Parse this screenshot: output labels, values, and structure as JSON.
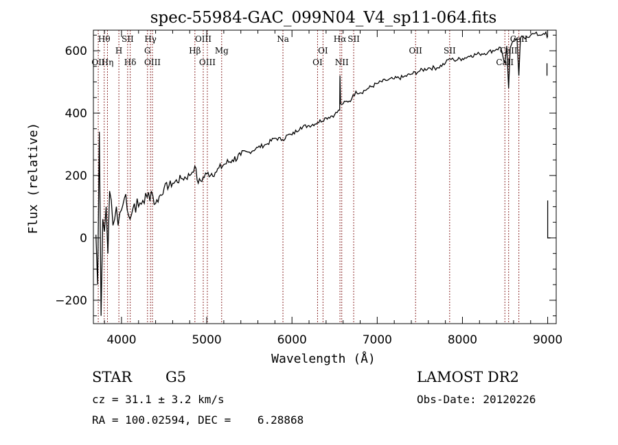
{
  "chart_data": {
    "type": "line",
    "title": "spec-55984-GAC_099N04_V4_sp11-064.fits",
    "xlabel": "Wavelength (Å)",
    "ylabel": "Flux (relative)",
    "xlim": [
      3670,
      9100
    ],
    "ylim": [
      -275,
      666
    ],
    "grid": false,
    "x_ticks": [
      4000,
      5000,
      6000,
      7000,
      8000,
      9000
    ],
    "x_tick_labels": [
      "4000",
      "5000",
      "6000",
      "7000",
      "8000",
      "9000"
    ],
    "x_minor_step": 200,
    "y_ticks": [
      -200,
      0,
      200,
      400,
      600
    ],
    "y_tick_labels": [
      "−200",
      "0",
      "200",
      "400",
      "600"
    ],
    "y_minor_step": 50,
    "line_color": "#000000",
    "marker_line_color": "#8b2a2a",
    "series": [
      {
        "name": "spectrum",
        "x": [
          3700,
          3720,
          3740,
          3760,
          3780,
          3800,
          3820,
          3840,
          3860,
          3880,
          3900,
          3920,
          3940,
          3960,
          3980,
          4000,
          4050,
          4100,
          4150,
          4200,
          4250,
          4300,
          4350,
          4400,
          4500,
          4600,
          4700,
          4800,
          4860,
          4900,
          5000,
          5100,
          5200,
          5300,
          5400,
          5500,
          5600,
          5700,
          5800,
          5890,
          5950,
          6000,
          6100,
          6200,
          6300,
          6400,
          6500,
          6560,
          6563,
          6570,
          6600,
          6700,
          6750,
          6800,
          6900,
          7000,
          7100,
          7200,
          7300,
          7400,
          7500,
          7600,
          7700,
          7800,
          7850,
          7900,
          8000,
          8100,
          8200,
          8300,
          8400,
          8450,
          8498,
          8520,
          8542,
          8560,
          8600,
          8640,
          8662,
          8680,
          8750,
          8800,
          8850,
          8900,
          8950,
          8980,
          8995
        ],
        "y": [
          10,
          -150,
          340,
          -250,
          60,
          20,
          100,
          -50,
          150,
          120,
          40,
          60,
          100,
          40,
          80,
          90,
          140,
          60,
          110,
          100,
          120,
          130,
          150,
          110,
          160,
          175,
          190,
          200,
          230,
          175,
          205,
          210,
          235,
          250,
          265,
          275,
          290,
          300,
          320,
          315,
          330,
          330,
          355,
          360,
          370,
          385,
          395,
          410,
          520,
          430,
          430,
          445,
          470,
          465,
          480,
          495,
          505,
          510,
          515,
          525,
          535,
          545,
          545,
          560,
          575,
          570,
          575,
          585,
          590,
          595,
          605,
          610,
          560,
          615,
          480,
          610,
          630,
          640,
          520,
          640,
          645,
          650,
          655,
          650,
          655,
          660,
          640
        ]
      }
    ],
    "line_markers": [
      {
        "label": "Hθ",
        "wavelength": 3797,
        "row": 1
      },
      {
        "label": "OII",
        "wavelength": 3727,
        "row": 3
      },
      {
        "label": "Hη",
        "wavelength": 3835,
        "row": 3
      },
      {
        "label": "H",
        "wavelength": 3969,
        "row": 2
      },
      {
        "label": "SII",
        "wavelength": 4072,
        "row": 1
      },
      {
        "label": "Hδ",
        "wavelength": 4102,
        "row": 3
      },
      {
        "label": "Hγ",
        "wavelength": 4340,
        "row": 1
      },
      {
        "label": "G",
        "wavelength": 4305,
        "row": 2
      },
      {
        "label": "OIII",
        "wavelength": 4363,
        "row": 3
      },
      {
        "label": "Hβ",
        "wavelength": 4861,
        "row": 2
      },
      {
        "label": "OIII",
        "wavelength": 4959,
        "row": 1
      },
      {
        "label": "OIII",
        "wavelength": 5007,
        "row": 3
      },
      {
        "label": "Mg",
        "wavelength": 5175,
        "row": 2
      },
      {
        "label": "Na",
        "wavelength": 5894,
        "row": 1
      },
      {
        "label": "OI",
        "wavelength": 6300,
        "row": 3
      },
      {
        "label": "OI",
        "wavelength": 6364,
        "row": 2
      },
      {
        "label": "Hα",
        "wavelength": 6563,
        "row": 1
      },
      {
        "label": "NII",
        "wavelength": 6584,
        "row": 3
      },
      {
        "label": "SII",
        "wavelength": 6724,
        "row": 1
      },
      {
        "label": "OII",
        "wavelength": 7450,
        "row": 2
      },
      {
        "label": "SII",
        "wavelength": 7850,
        "row": 2
      },
      {
        "label": "CaII",
        "wavelength": 8498,
        "row": 3
      },
      {
        "label": "CaII",
        "wavelength": 8542,
        "row": 2
      },
      {
        "label": "CaII",
        "wavelength": 8662,
        "row": 1
      }
    ]
  },
  "info": {
    "object_class": "STAR",
    "subclass": "G5",
    "redshift_line": "cz = 31.1 ± 3.2 km/s",
    "coords_line": "RA = 100.02594, DEC =    6.28868",
    "survey": "LAMOST DR2",
    "obs_date_line": "Obs-Date: 20120226"
  }
}
